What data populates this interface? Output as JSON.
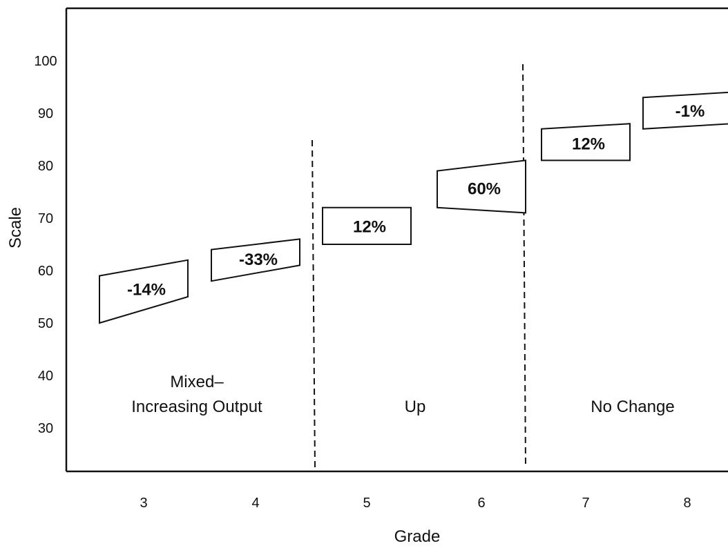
{
  "chart_data": {
    "type": "bar",
    "xlabel": "Grade",
    "ylabel": "Scale",
    "yticks": [
      30,
      40,
      50,
      60,
      70,
      80,
      90,
      100
    ],
    "categories": [
      "3",
      "4",
      "5",
      "6",
      "7",
      "8"
    ],
    "boxes": [
      {
        "grade": "3",
        "start_low": 50,
        "start_high": 59,
        "end_low": 55,
        "end_high": 62,
        "label": "-14%"
      },
      {
        "grade": "4",
        "start_low": 58,
        "start_high": 64,
        "end_low": 61,
        "end_high": 66,
        "label": "-33%"
      },
      {
        "grade": "5",
        "start_low": 65,
        "start_high": 72,
        "end_low": 65,
        "end_high": 72,
        "label": "12%"
      },
      {
        "grade": "6",
        "start_low": 72,
        "start_high": 79,
        "end_low": 71,
        "end_high": 81,
        "label": "60%"
      },
      {
        "grade": "7",
        "start_low": 81,
        "start_high": 87,
        "end_low": 81,
        "end_high": 88,
        "label": "12%"
      },
      {
        "grade": "8",
        "start_low": 87,
        "start_high": 93,
        "end_low": 88,
        "end_high": 94,
        "label": "-1%"
      }
    ],
    "regions": [
      {
        "lines": [
          "Mixed–",
          "Increasing Output"
        ]
      },
      {
        "lines": [
          "Up"
        ]
      },
      {
        "lines": [
          "No Change"
        ]
      }
    ],
    "grid": false,
    "legend": "none"
  }
}
